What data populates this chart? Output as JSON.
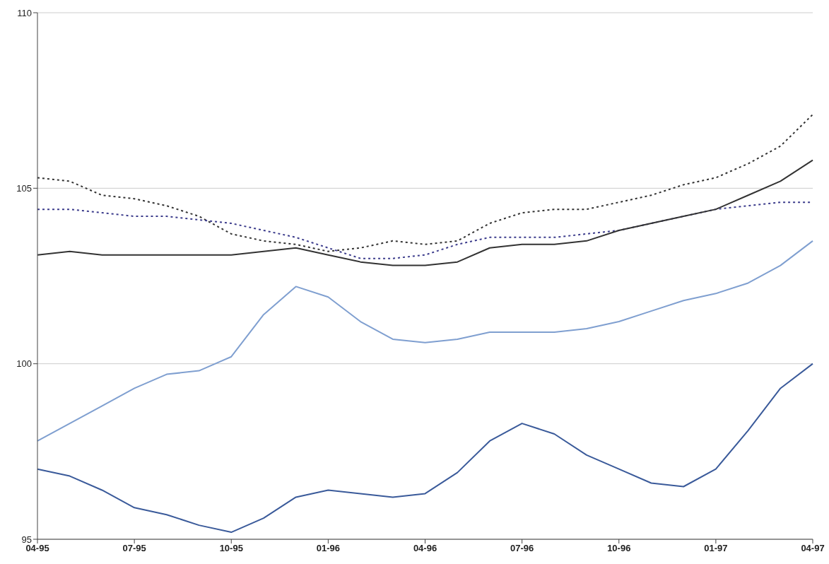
{
  "chart_data": {
    "type": "line",
    "categories": [
      "04-95",
      null,
      null,
      "07-95",
      null,
      null,
      "10-95",
      null,
      null,
      "01-96",
      null,
      null,
      "04-96",
      null,
      null,
      "07-96",
      null,
      null,
      "10-96",
      null,
      null,
      "01-97",
      null,
      null,
      "04-97"
    ],
    "series": [
      {
        "color": "#333333",
        "line_style": "dotted",
        "values": [
          105.3,
          105.2,
          104.8,
          104.7,
          104.5,
          104.2,
          103.7,
          103.5,
          103.4,
          103.2,
          103.3,
          103.5,
          103.4,
          103.5,
          104.0,
          104.3,
          104.4,
          104.4,
          104.6,
          104.8,
          105.1,
          105.3,
          105.7,
          106.2,
          107.1
        ]
      },
      {
        "color": "#3c3c8c",
        "line_style": "dotted",
        "values": [
          104.4,
          104.4,
          104.3,
          104.2,
          104.2,
          104.1,
          104.0,
          103.8,
          103.6,
          103.3,
          103.0,
          103.0,
          103.1,
          103.4,
          103.6,
          103.6,
          103.6,
          103.7,
          103.8,
          104.0,
          104.2,
          104.4,
          104.5,
          104.6,
          104.6
        ]
      },
      {
        "color": "#333333",
        "line_style": "solid",
        "values": [
          103.1,
          103.2,
          103.1,
          103.1,
          103.1,
          103.1,
          103.1,
          103.2,
          103.3,
          103.1,
          102.9,
          102.8,
          102.8,
          102.9,
          103.3,
          103.4,
          103.4,
          103.5,
          103.8,
          104.0,
          104.2,
          104.4,
          104.8,
          105.2,
          105.8
        ]
      },
      {
        "color": "#7f9fd0",
        "line_style": "solid",
        "values": [
          97.8,
          98.3,
          98.8,
          99.3,
          99.7,
          99.8,
          100.2,
          101.4,
          102.2,
          101.9,
          101.2,
          100.7,
          100.6,
          100.7,
          100.9,
          100.9,
          100.9,
          101.0,
          101.2,
          101.5,
          101.8,
          102.0,
          102.3,
          102.8,
          103.5
        ]
      },
      {
        "color": "#3a5a9a",
        "line_style": "solid",
        "values": [
          97.0,
          96.8,
          96.4,
          95.9,
          95.7,
          95.4,
          95.2,
          95.6,
          96.2,
          96.4,
          96.3,
          96.2,
          96.3,
          96.9,
          97.8,
          98.3,
          98.0,
          97.4,
          97.0,
          96.6,
          96.5,
          97.0,
          98.1,
          99.3,
          100.0
        ]
      }
    ],
    "ylim": [
      95,
      110
    ],
    "yticks": [
      95,
      100,
      105,
      110
    ],
    "grid": "y",
    "marker": "none"
  }
}
